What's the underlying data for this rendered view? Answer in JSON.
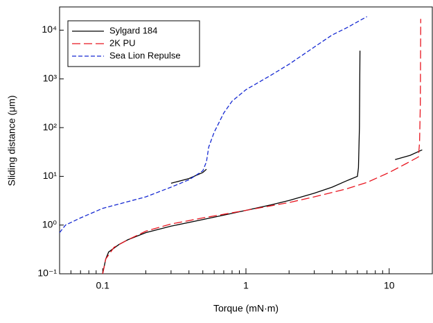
{
  "chart_data": {
    "type": "line",
    "xlabel": "Torque (mN·m)",
    "ylabel": "Sliding distance (μm)",
    "xscale": "log",
    "yscale": "log",
    "xlim": [
      0.05,
      20
    ],
    "ylim": [
      0.1,
      30000
    ],
    "xticks": [
      0.1,
      1,
      10
    ],
    "xminor_ticks": [
      0.06,
      0.07,
      0.08,
      0.09,
      0.2,
      0.3,
      0.4,
      0.5,
      0.6,
      0.7,
      0.8,
      0.9,
      2,
      3,
      4,
      5,
      6,
      7,
      8,
      9
    ],
    "yticks": [
      {
        "value": 0.1,
        "label": "10⁻¹"
      },
      {
        "value": 1,
        "label": "10⁰"
      },
      {
        "value": 10,
        "label": "10¹"
      },
      {
        "value": 100,
        "label": "10²"
      },
      {
        "value": 1000,
        "label": "10³"
      },
      {
        "value": 10000,
        "label": "10⁴"
      }
    ],
    "legend": "upper left",
    "series": [
      {
        "name": "Sylgard 184",
        "color": "#000000",
        "dash": "solid",
        "x": [
          0.1,
          0.105,
          0.11,
          0.13,
          0.15,
          0.2,
          0.3,
          0.5,
          0.7,
          1,
          1.5,
          2,
          3,
          4,
          5,
          6,
          6.1,
          6.2,
          6.25,
          null,
          0.3,
          0.4,
          0.5,
          0.53,
          null,
          11,
          14,
          17
        ],
        "values": [
          0.1,
          0.2,
          0.28,
          0.4,
          0.5,
          0.7,
          0.95,
          1.3,
          1.6,
          2.0,
          2.6,
          3.2,
          4.5,
          6,
          8,
          10,
          15,
          100,
          3800,
          null,
          7.2,
          9,
          12,
          14,
          null,
          22,
          27,
          35
        ]
      },
      {
        "name": "2K PU",
        "color": "#e8141e",
        "dash": "long",
        "x": [
          0.1,
          0.105,
          0.12,
          0.15,
          0.2,
          0.3,
          0.5,
          1,
          2,
          3,
          5,
          7,
          10,
          13,
          16,
          16.3,
          16.5,
          16.6
        ],
        "values": [
          0.1,
          0.2,
          0.35,
          0.5,
          0.75,
          1.05,
          1.4,
          2.0,
          2.9,
          3.8,
          5.5,
          7.5,
          12,
          18,
          25,
          50,
          300,
          17000
        ]
      },
      {
        "name": "Sea Lion Repulse",
        "color": "#1428d2",
        "dash": "short",
        "x": [
          0.05,
          0.055,
          0.07,
          0.1,
          0.2,
          0.3,
          0.4,
          0.5,
          0.53,
          0.55,
          0.6,
          0.7,
          0.8,
          1,
          1.5,
          2,
          3,
          4,
          5,
          7
        ],
        "values": [
          0.7,
          1,
          1.4,
          2.2,
          3.8,
          6,
          8.5,
          13,
          20,
          40,
          80,
          200,
          350,
          600,
          1200,
          2000,
          4500,
          8000,
          11000,
          19000
        ]
      }
    ]
  }
}
